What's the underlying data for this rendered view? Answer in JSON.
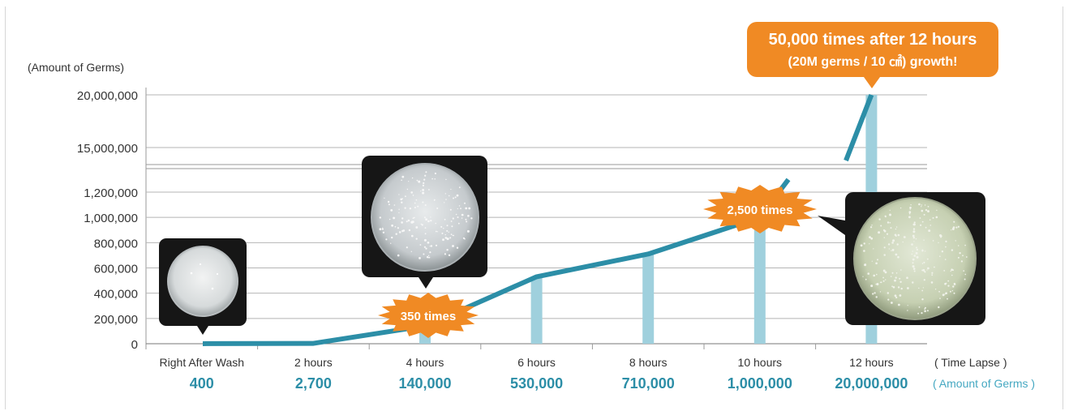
{
  "chart_data": {
    "type": "line",
    "ylabel": "(Amount of Germs)",
    "upper_ticks": [
      "20,000,000",
      "15,000,000"
    ],
    "lower_ticks": [
      "1,200,000",
      "1,000,000",
      "800,000",
      "600,000",
      "400,000",
      "200,000",
      "0"
    ],
    "categories": [
      "Right After Wash",
      "2 hours",
      "4 hours",
      "6 hours",
      "8 hours",
      "10 hours",
      "12 hours"
    ],
    "values": [
      400,
      2700,
      140000,
      530000,
      710000,
      1000000,
      20000000
    ],
    "value_labels": [
      "400",
      "2,700",
      "140,000",
      "530,000",
      "710,000",
      "1,000,000",
      "20,000,000"
    ],
    "x_unit_label": "( Time Lapse )",
    "value_unit_label": "( Amount of Germs )",
    "y_break": [
      1300000,
      14000000
    ],
    "colors": {
      "line": "#2c8ea7",
      "bars": "#9fd0dd",
      "callout": "#f08a24",
      "value_text": "#2c8ea7"
    }
  },
  "callouts": {
    "top_line1": "50,000 times after 12 hours",
    "top_line2": "(20M germs / 10 ㎠) growth!",
    "mid": "2,500 times",
    "low": "350 times"
  }
}
